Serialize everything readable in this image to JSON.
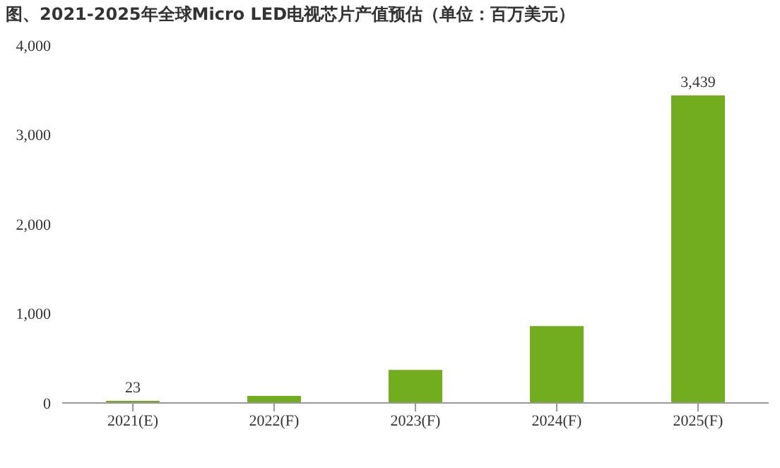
{
  "chart_data": {
    "type": "bar",
    "title": "图、2021-2025年全球Micro LED电视芯片产值预估（单位：百万美元）",
    "categories": [
      "2021(E)",
      "2022(F)",
      "2023(F)",
      "2024(F)",
      "2025(F)"
    ],
    "values": [
      23,
      80,
      370,
      860,
      3439
    ],
    "color": "#72ac1f",
    "value_labels": [
      "23",
      null,
      null,
      null,
      "3,439"
    ],
    "ylim": [
      0,
      4000
    ],
    "yticks": [
      {
        "value": 0,
        "label": "0"
      },
      {
        "value": 1000,
        "label": "1,000"
      },
      {
        "value": 2000,
        "label": "2,000"
      },
      {
        "value": 3000,
        "label": "3,000"
      },
      {
        "value": 4000,
        "label": "4,000"
      }
    ],
    "grid": false,
    "legend": false
  }
}
